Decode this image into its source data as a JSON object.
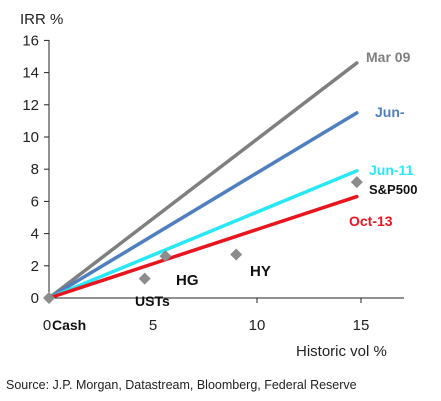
{
  "chart_data": {
    "type": "line",
    "title": "",
    "ylabel": "IRR %",
    "xlabel": "Historic vol %",
    "xlim": [
      0,
      17
    ],
    "ylim": [
      0,
      16
    ],
    "x_ticks": [
      0,
      5,
      10,
      15
    ],
    "y_ticks": [
      0,
      2,
      4,
      6,
      8,
      10,
      12,
      14,
      16
    ],
    "grid": false,
    "series": [
      {
        "name": "Mar 09",
        "color": "#7f7f7f",
        "x": [
          0,
          14.8
        ],
        "y": [
          0,
          14.6
        ]
      },
      {
        "name": "Jun-",
        "color": "#4f7fbf",
        "x": [
          0,
          14.8
        ],
        "y": [
          0,
          11.5
        ]
      },
      {
        "name": "Jun-11",
        "color": "#27e8f4",
        "x": [
          0,
          14.8
        ],
        "y": [
          0,
          7.9
        ]
      },
      {
        "name": "Oct-13",
        "color": "#e8151f",
        "x": [
          0,
          14.8
        ],
        "y": [
          0,
          6.3
        ]
      }
    ],
    "points": [
      {
        "label": "Cash",
        "x": 0,
        "y": 0
      },
      {
        "label": "USTs",
        "x": 4.6,
        "y": 1.2
      },
      {
        "label": "HG",
        "x": 5.6,
        "y": 2.6
      },
      {
        "label": "HY",
        "x": 9,
        "y": 2.7
      },
      {
        "label": "S&P500",
        "x": 14.8,
        "y": 7.2
      }
    ],
    "marker_color": "#8c8c8c"
  },
  "footer": {
    "source": "Source: J.P. Morgan, Datastream, Bloomberg, Federal Reserve"
  }
}
